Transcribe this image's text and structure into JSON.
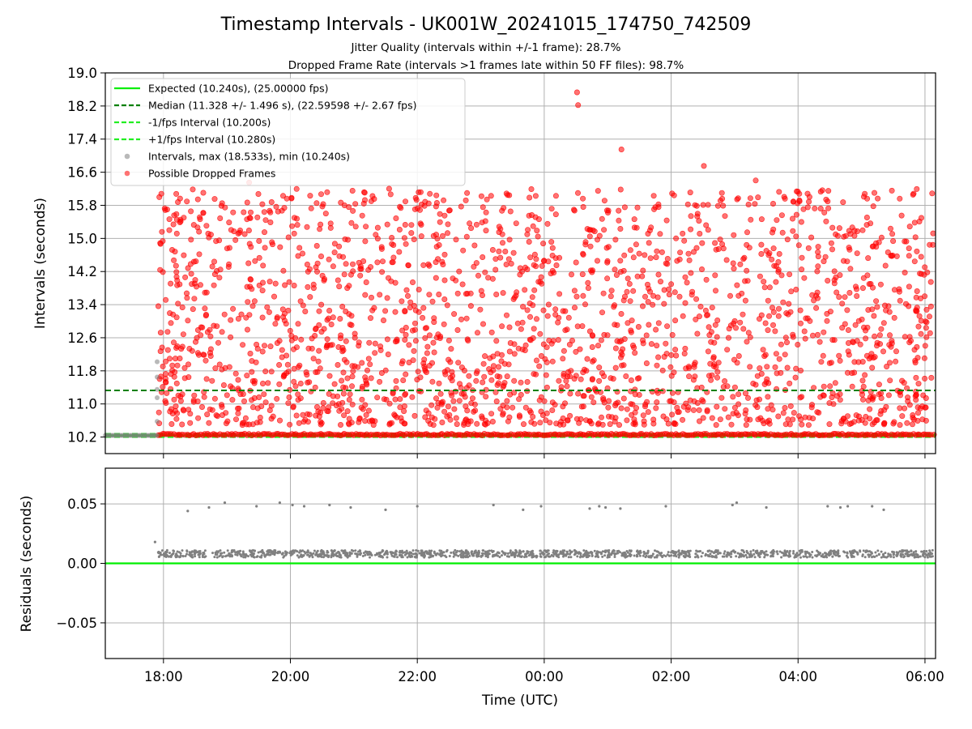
{
  "title": "Timestamp Intervals - UK001W_20241015_174750_742509",
  "subtitle_1": "Jitter Quality (intervals within +/-1 frame): 28.7%",
  "subtitle_2": "Dropped Frame Rate (intervals >1 frames late within 50 FF files): 98.7%",
  "colors": {
    "expected": "#00ee00",
    "median": "#008000",
    "interval_band": "#22ee22",
    "intervals": "#808080",
    "dropped": "#ff0000",
    "residuals": "#808080",
    "residual_zero": "#00ee00",
    "grid": "#b0b0b0"
  },
  "chart_data": [
    {
      "type": "scatter",
      "panel": "top",
      "xlabel": "",
      "ylabel": "Intervals (seconds)",
      "xlim": [
        "17:05",
        "06:10"
      ],
      "ylim": [
        9.8,
        19.0
      ],
      "yticks": [
        10.2,
        11.0,
        11.8,
        12.6,
        13.4,
        14.2,
        15.0,
        15.8,
        16.6,
        17.4,
        18.2,
        19.0
      ],
      "xticks": [
        "18:00",
        "20:00",
        "22:00",
        "00:00",
        "02:00",
        "04:00",
        "06:00"
      ],
      "grid": true,
      "legend_position": "upper-left",
      "legend": [
        {
          "label": "Expected (10.240s), (25.00000 fps)",
          "style": "solid-line",
          "color_key": "expected"
        },
        {
          "label": "Median (11.328 +/- 1.496 s), (22.59598 +/- 2.67 fps)",
          "style": "dashed-line",
          "color_key": "median"
        },
        {
          "label": "-1/fps Interval (10.200s)",
          "style": "dashed-line",
          "color_key": "interval_band"
        },
        {
          "label": "+1/fps Interval (10.280s)",
          "style": "dashed-line",
          "color_key": "interval_band"
        },
        {
          "label": "Intervals, max (18.533s), min (10.240s)",
          "style": "marker",
          "color_key": "intervals"
        },
        {
          "label": "Possible Dropped Frames",
          "style": "marker",
          "color_key": "dropped"
        }
      ],
      "expected": 10.24,
      "median": 11.328,
      "minus_1fps": 10.2,
      "plus_1fps": 10.28,
      "interval_points": [
        {
          "t": "17:54",
          "y": 12.02
        },
        {
          "t": "17:54",
          "y": 11.65
        },
        {
          "t": "17:54",
          "y": 11.35
        },
        {
          "t": "17:54",
          "y": 11.15
        },
        {
          "t": "17:54",
          "y": 10.58
        }
      ],
      "dropped_highlights": [
        {
          "t": "00:31",
          "y": 18.53
        },
        {
          "t": "00:32",
          "y": 18.22
        },
        {
          "t": "01:13",
          "y": 17.15
        },
        {
          "t": "02:31",
          "y": 16.75
        },
        {
          "t": "19:21",
          "y": 16.35
        },
        {
          "t": "03:20",
          "y": 16.4
        }
      ],
      "dropped_summary": {
        "start": "17:55",
        "end": "06:08",
        "y_range": [
          10.24,
          16.2
        ],
        "baseline": 10.24
      }
    },
    {
      "type": "scatter",
      "panel": "bottom",
      "xlabel": "Time (UTC)",
      "ylabel": "Residuals (seconds)",
      "xlim": [
        "17:05",
        "06:10"
      ],
      "ylim": [
        -0.08,
        0.08
      ],
      "yticks": [
        "−0.05",
        "0.00",
        "0.05"
      ],
      "ytick_values": [
        -0.05,
        0.0,
        0.05
      ],
      "xticks": [
        "18:00",
        "20:00",
        "22:00",
        "00:00",
        "02:00",
        "04:00",
        "06:00"
      ],
      "grid": true,
      "zero_line": 0.0,
      "residual_band": 0.008,
      "residual_outliers": [
        {
          "t": "17:52",
          "y": 0.018
        },
        {
          "t": "18:23",
          "y": 0.044
        },
        {
          "t": "18:43",
          "y": 0.047
        },
        {
          "t": "18:58",
          "y": 0.051
        },
        {
          "t": "19:28",
          "y": 0.048
        },
        {
          "t": "19:50",
          "y": 0.051
        },
        {
          "t": "20:02",
          "y": 0.049
        },
        {
          "t": "20:13",
          "y": 0.048
        },
        {
          "t": "20:37",
          "y": 0.049
        },
        {
          "t": "20:57",
          "y": 0.047
        },
        {
          "t": "21:30",
          "y": 0.045
        },
        {
          "t": "22:00",
          "y": 0.048
        },
        {
          "t": "23:12",
          "y": 0.049
        },
        {
          "t": "23:40",
          "y": 0.045
        },
        {
          "t": "23:57",
          "y": 0.048
        },
        {
          "t": "00:43",
          "y": 0.046
        },
        {
          "t": "00:52",
          "y": 0.048
        },
        {
          "t": "00:58",
          "y": 0.047
        },
        {
          "t": "01:12",
          "y": 0.046
        },
        {
          "t": "01:55",
          "y": 0.048
        },
        {
          "t": "02:58",
          "y": 0.049
        },
        {
          "t": "03:02",
          "y": 0.051
        },
        {
          "t": "03:30",
          "y": 0.047
        },
        {
          "t": "04:28",
          "y": 0.048
        },
        {
          "t": "04:40",
          "y": 0.047
        },
        {
          "t": "04:47",
          "y": 0.048
        },
        {
          "t": "05:10",
          "y": 0.048
        },
        {
          "t": "05:21",
          "y": 0.045
        }
      ]
    }
  ]
}
